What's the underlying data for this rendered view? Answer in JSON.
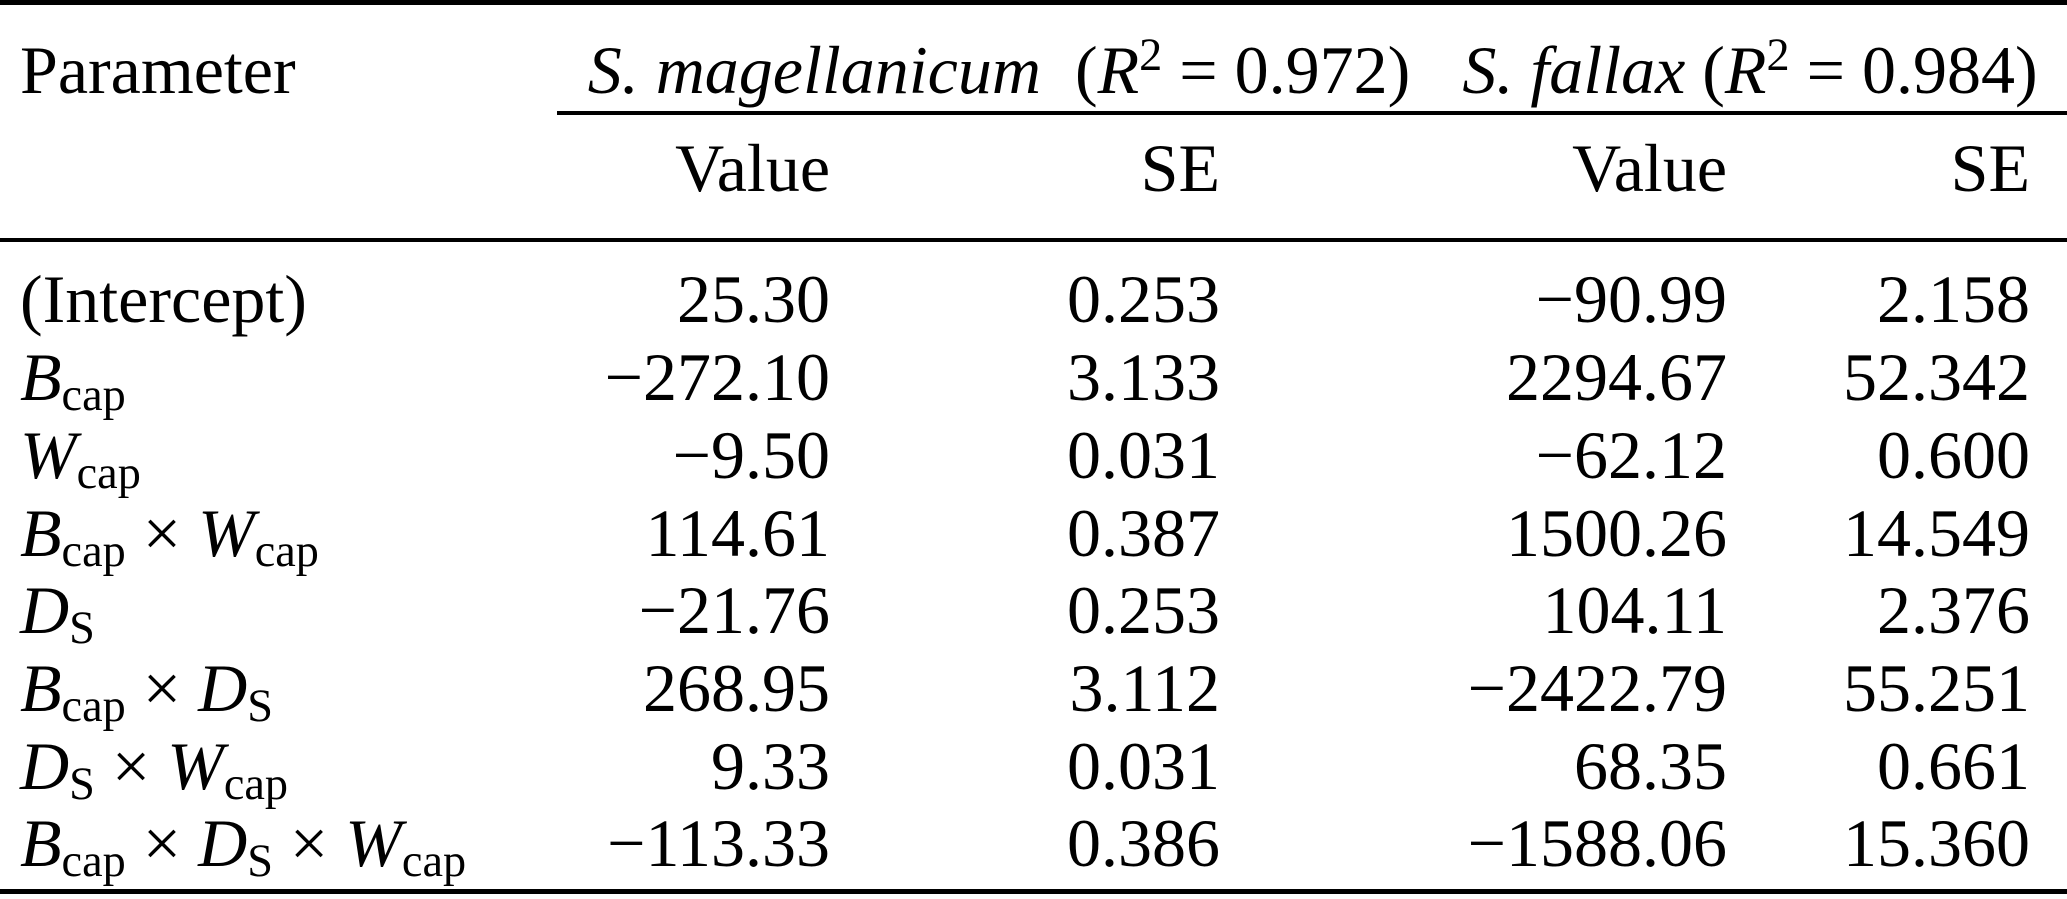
{
  "colors": {
    "background": "#ffffff",
    "text": "#000000",
    "rule": "#000000"
  },
  "table": {
    "parameter_header": "Parameter",
    "groups": [
      {
        "label": "S. magellanicum (R² = 0.972)",
        "label_tokens": [
          [
            "i",
            "S. magellanicum"
          ],
          [
            "t",
            " ("
          ],
          [
            "i",
            "R"
          ],
          [
            "sup",
            "2"
          ],
          [
            "t",
            " = 0.972)"
          ]
        ],
        "subcols": [
          "Value",
          "SE"
        ]
      },
      {
        "label": "S. fallax (R² = 0.984)",
        "label_tokens": [
          [
            "i",
            "S. fallax"
          ],
          [
            "t",
            " ("
          ],
          [
            "i",
            "R"
          ],
          [
            "sup",
            "2"
          ],
          [
            "t",
            " = 0.984)"
          ]
        ],
        "subcols": [
          "Value",
          "SE"
        ]
      }
    ],
    "subheaders": [
      "Value",
      "SE",
      "Value",
      "SE"
    ],
    "rows": [
      {
        "param": "(Intercept)",
        "param_tokens": [
          [
            "t",
            "(Intercept)"
          ]
        ],
        "values": [
          "25.30",
          "0.253",
          "−90.99",
          "2.158"
        ]
      },
      {
        "param": "B_cap",
        "param_tokens": [
          [
            "i",
            "B"
          ],
          [
            "sub",
            "cap"
          ]
        ],
        "values": [
          "−272.10",
          "3.133",
          "2294.67",
          "52.342"
        ]
      },
      {
        "param": "W_cap",
        "param_tokens": [
          [
            "i",
            "W"
          ],
          [
            "sub",
            "cap"
          ]
        ],
        "values": [
          "−9.50",
          "0.031",
          "−62.12",
          "0.600"
        ]
      },
      {
        "param": "B_cap × W_cap",
        "param_tokens": [
          [
            "i",
            "B"
          ],
          [
            "sub",
            "cap"
          ],
          [
            "t",
            " × "
          ],
          [
            "i",
            "W"
          ],
          [
            "sub",
            "cap"
          ]
        ],
        "values": [
          "114.61",
          "0.387",
          "1500.26",
          "14.549"
        ]
      },
      {
        "param": "D_S",
        "param_tokens": [
          [
            "i",
            "D"
          ],
          [
            "sub",
            "S"
          ]
        ],
        "values": [
          "−21.76",
          "0.253",
          "104.11",
          "2.376"
        ]
      },
      {
        "param": "B_cap × D_S",
        "param_tokens": [
          [
            "i",
            "B"
          ],
          [
            "sub",
            "cap"
          ],
          [
            "t",
            " × "
          ],
          [
            "i",
            "D"
          ],
          [
            "sub",
            "S"
          ]
        ],
        "values": [
          "268.95",
          "3.112",
          "−2422.79",
          "55.251"
        ]
      },
      {
        "param": "D_S × W_cap",
        "param_tokens": [
          [
            "i",
            "D"
          ],
          [
            "sub",
            "S"
          ],
          [
            "t",
            " × "
          ],
          [
            "i",
            "W"
          ],
          [
            "sub",
            "cap"
          ]
        ],
        "values": [
          "9.33",
          "0.031",
          "68.35",
          "0.661"
        ]
      },
      {
        "param": "B_cap × D_S × W_cap",
        "param_tokens": [
          [
            "i",
            "B"
          ],
          [
            "sub",
            "cap"
          ],
          [
            "t",
            " × "
          ],
          [
            "i",
            "D"
          ],
          [
            "sub",
            "S"
          ],
          [
            "t",
            " × "
          ],
          [
            "i",
            "W"
          ],
          [
            "sub",
            "cap"
          ]
        ],
        "values": [
          "−113.33",
          "0.386",
          "−1588.06",
          "15.360"
        ]
      }
    ]
  }
}
